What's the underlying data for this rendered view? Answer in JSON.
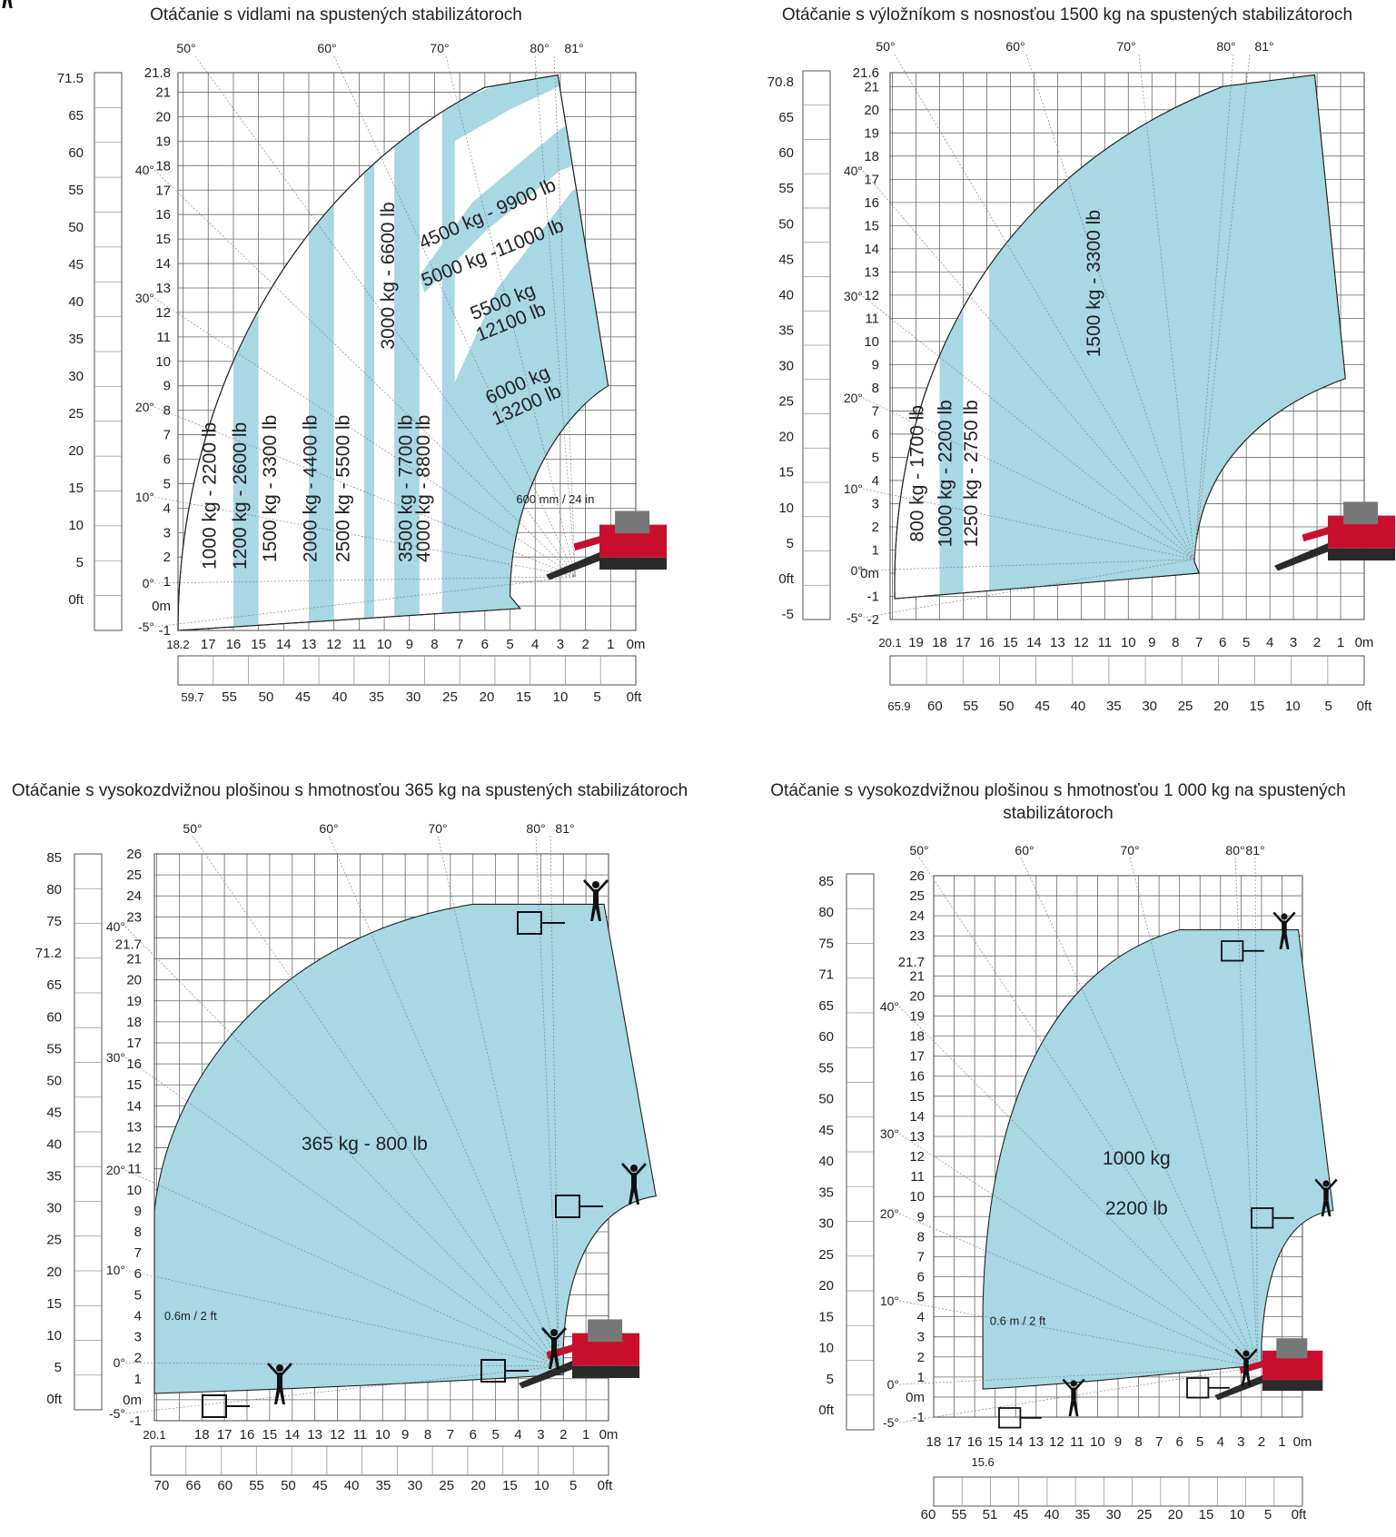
{
  "chart_data": [
    {
      "type": "area",
      "title": "Otáčanie s vidlami na spustených stabilizátoroch",
      "x_unit": "m",
      "y_unit": "m",
      "xlim": [
        18.2,
        0
      ],
      "ylim": [
        -1,
        21.8
      ],
      "x_ticks": [
        "18.2",
        "17",
        "16",
        "15",
        "14",
        "13",
        "12",
        "11",
        "10",
        "9",
        "8",
        "7",
        "6",
        "5",
        "4",
        "3",
        "2",
        "1",
        "0m"
      ],
      "y_ticks": [
        "21.8",
        "21",
        "20",
        "19",
        "18",
        "17",
        "16",
        "15",
        "14",
        "13",
        "12",
        "11",
        "10",
        "9",
        "8",
        "7",
        "6",
        "5",
        "4",
        "3",
        "2",
        "1",
        "0m",
        "-1"
      ],
      "ft_x_ticks": [
        "59.7",
        "55",
        "50",
        "45",
        "40",
        "35",
        "30",
        "25",
        "20",
        "15",
        "10",
        "5",
        "0ft"
      ],
      "ft_y_ticks": [
        "71.5",
        "65",
        "60",
        "55",
        "50",
        "45",
        "40",
        "35",
        "30",
        "25",
        "20",
        "15",
        "10",
        "5",
        "0ft"
      ],
      "angles_top": [
        "50°",
        "60°",
        "70°",
        "80°",
        "81°"
      ],
      "angles_left": [
        "40°",
        "30°",
        "20°",
        "10°",
        "0°",
        "-5°"
      ],
      "annotation": "600 mm / 24 in",
      "series": [
        {
          "name": "1000 kg - 2200 lb"
        },
        {
          "name": "1200 kg - 2600 lb"
        },
        {
          "name": "1500 kg - 3300 lb"
        },
        {
          "name": "2000 kg - 4400 lb"
        },
        {
          "name": "2500 kg - 5500 lb"
        },
        {
          "name": "3000 kg - 6600 lb"
        },
        {
          "name": "3500 kg - 7700 lb"
        },
        {
          "name": "4000 kg - 8800 lb"
        },
        {
          "name": "4500 kg - 9900 lb"
        },
        {
          "name": "5000 kg -11000 lb"
        },
        {
          "name": "5500 kg\n12100 lb"
        },
        {
          "name": "6000 kg\n13200 lb"
        }
      ]
    },
    {
      "type": "area",
      "title": "Otáčanie s výložníkom s nosnosťou 1500 kg na spustených stabilizátoroch",
      "xlim": [
        20.1,
        0
      ],
      "ylim": [
        -2,
        21.6
      ],
      "x_ticks": [
        "20.1",
        "19",
        "18",
        "17",
        "16",
        "15",
        "14",
        "13",
        "12",
        "11",
        "10",
        "9",
        "8",
        "7",
        "6",
        "5",
        "4",
        "3",
        "2",
        "1",
        "0m"
      ],
      "y_ticks": [
        "21.6",
        "21",
        "20",
        "19",
        "18",
        "17",
        "16",
        "15",
        "14",
        "13",
        "12",
        "11",
        "10",
        "9",
        "8",
        "7",
        "6",
        "5",
        "4",
        "3",
        "2",
        "1",
        "0m",
        "-1",
        "-2"
      ],
      "ft_x_ticks": [
        "65.9",
        "60",
        "55",
        "50",
        "45",
        "40",
        "35",
        "30",
        "25",
        "20",
        "15",
        "10",
        "5",
        "0ft"
      ],
      "ft_y_ticks": [
        "70.8",
        "65",
        "60",
        "55",
        "50",
        "45",
        "40",
        "35",
        "30",
        "25",
        "20",
        "15",
        "10",
        "5",
        "0ft",
        "-5"
      ],
      "angles_top": [
        "50°",
        "60°",
        "70°",
        "80°",
        "81°"
      ],
      "angles_left": [
        "40°",
        "30°",
        "20°",
        "10°",
        "0°",
        "-5°"
      ],
      "series": [
        {
          "name": "800 kg - 1700 lb"
        },
        {
          "name": "1000 kg - 2200 lb"
        },
        {
          "name": "1250 kg - 2750 lb"
        },
        {
          "name": "1500 kg - 3300 lb"
        }
      ]
    },
    {
      "type": "area",
      "title": "Otáčanie s vysokozdvižnou plošinou s hmotnosťou 365 kg na spustených stabilizátoroch",
      "xlim": [
        20.1,
        0
      ],
      "ylim": [
        -1,
        26
      ],
      "x_ticks": [
        "20.1",
        "18",
        "17",
        "16",
        "15",
        "14",
        "13",
        "12",
        "11",
        "10",
        "9",
        "8",
        "7",
        "6",
        "5",
        "4",
        "3",
        "2",
        "1",
        "0m"
      ],
      "y_ticks": [
        "26",
        "25",
        "24",
        "23",
        "21.7",
        "21",
        "20",
        "19",
        "18",
        "17",
        "16",
        "15",
        "14",
        "13",
        "12",
        "11",
        "10",
        "9",
        "8",
        "7",
        "6",
        "5",
        "4",
        "3",
        "2",
        "1",
        "0m",
        "-1"
      ],
      "ft_x_ticks": [
        "70",
        "66",
        "60",
        "55",
        "50",
        "45",
        "40",
        "35",
        "30",
        "25",
        "20",
        "15",
        "10",
        "5",
        "0ft"
      ],
      "ft_y_ticks": [
        "85",
        "80",
        "75",
        "71.2",
        "65",
        "60",
        "55",
        "50",
        "45",
        "40",
        "35",
        "30",
        "25",
        "20",
        "15",
        "10",
        "5",
        "0ft"
      ],
      "angles_top": [
        "50°",
        "60°",
        "70°",
        "80°",
        "81°"
      ],
      "angles_left": [
        "40°",
        "30°",
        "20°",
        "10°",
        "0°",
        "-5°"
      ],
      "annotation": "0.6m / 2 ft",
      "series": [
        {
          "name": "365 kg - 800 lb"
        }
      ]
    },
    {
      "type": "area",
      "title": "Otáčanie s vysokozdvižnou plošinou s hmotnosťou 1 000 kg na spustených stabilizátoroch",
      "xlim": [
        18,
        0
      ],
      "ylim": [
        -1,
        26
      ],
      "x_ticks": [
        "18",
        "17",
        "16",
        "15",
        "14",
        "13",
        "12",
        "11",
        "10",
        "9",
        "8",
        "7",
        "6",
        "5",
        "4",
        "3",
        "2",
        "1",
        "0m"
      ],
      "extra_x_tick": "15.6",
      "y_ticks": [
        "26",
        "25",
        "24",
        "23",
        "21.7",
        "21",
        "20",
        "19",
        "18",
        "17",
        "16",
        "15",
        "14",
        "13",
        "12",
        "11",
        "10",
        "9",
        "8",
        "7",
        "6",
        "5",
        "4",
        "3",
        "2",
        "1",
        "0m",
        "-1"
      ],
      "ft_x_ticks": [
        "60",
        "55",
        "51",
        "45",
        "40",
        "35",
        "30",
        "25",
        "20",
        "15",
        "10",
        "5",
        "0ft"
      ],
      "ft_y_ticks": [
        "85",
        "80",
        "75",
        "71",
        "65",
        "60",
        "55",
        "50",
        "45",
        "40",
        "35",
        "30",
        "25",
        "20",
        "15",
        "10",
        "5",
        "0ft"
      ],
      "angles_top": [
        "50°",
        "60°",
        "70°",
        "80°",
        "81°"
      ],
      "angles_left": [
        "40°",
        "30°",
        "20°",
        "10°",
        "0°",
        "-5°"
      ],
      "annotation": "0.6 m / 2 ft",
      "series": [
        {
          "name": "1000 kg"
        },
        {
          "name": "2200 lb"
        }
      ]
    }
  ],
  "colors": {
    "band": "#a7d8e3",
    "machine": "#c8102e"
  }
}
